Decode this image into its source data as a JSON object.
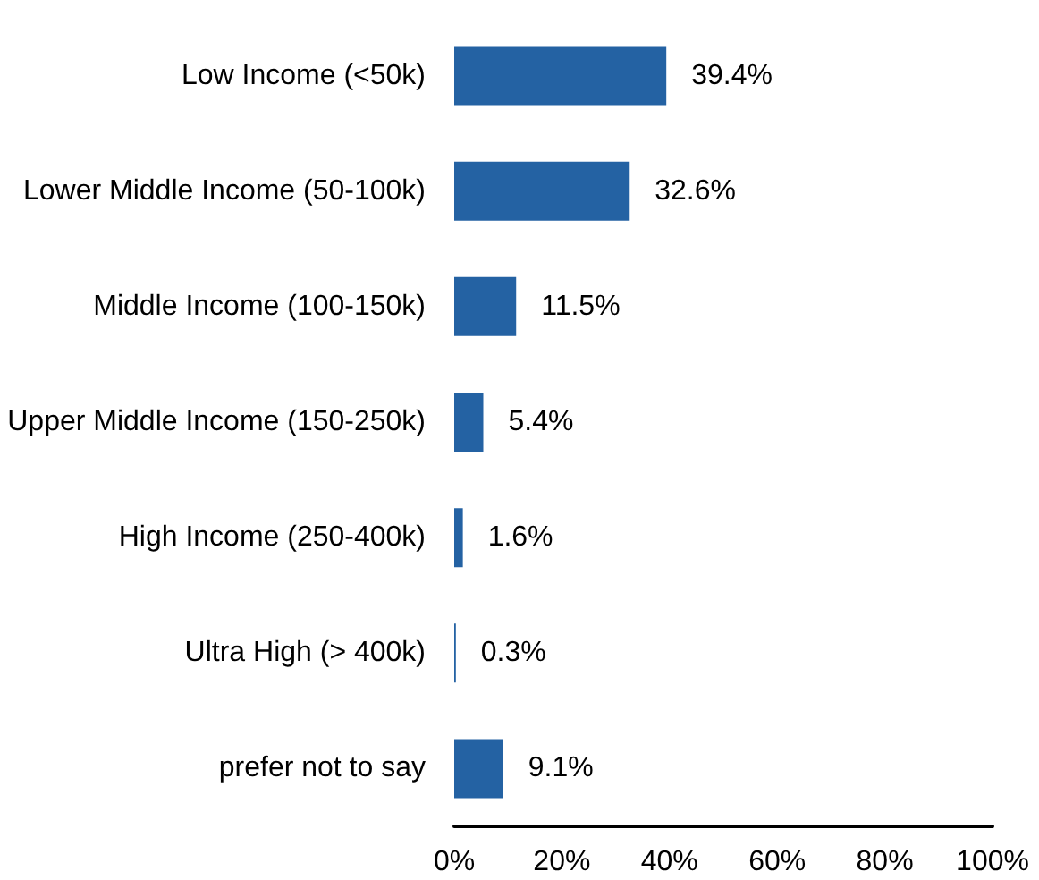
{
  "chart_data": {
    "type": "bar",
    "orientation": "horizontal",
    "categories": [
      "Low Income (<50k)",
      "Lower Middle Income (50-100k)",
      "Middle Income (100-150k)",
      "Upper Middle Income (150-250k)",
      "High Income (250-400k)",
      "Ultra High (> 400k)",
      "prefer not to say"
    ],
    "values": [
      39.4,
      32.6,
      11.5,
      5.4,
      1.6,
      0.3,
      9.1
    ],
    "value_labels": [
      "39.4%",
      "32.6%",
      "11.5%",
      "5.4%",
      "1.6%",
      "0.3%",
      "9.1%"
    ],
    "color": "#2462a3",
    "xlim": [
      0,
      100
    ],
    "xticks": [
      {
        "value": 0,
        "label": "0%"
      },
      {
        "value": 20,
        "label": "20%"
      },
      {
        "value": 40,
        "label": "40%"
      },
      {
        "value": 60,
        "label": "60%"
      },
      {
        "value": 80,
        "label": "80%"
      },
      {
        "value": 100,
        "label": "100%"
      }
    ],
    "grid": false
  }
}
